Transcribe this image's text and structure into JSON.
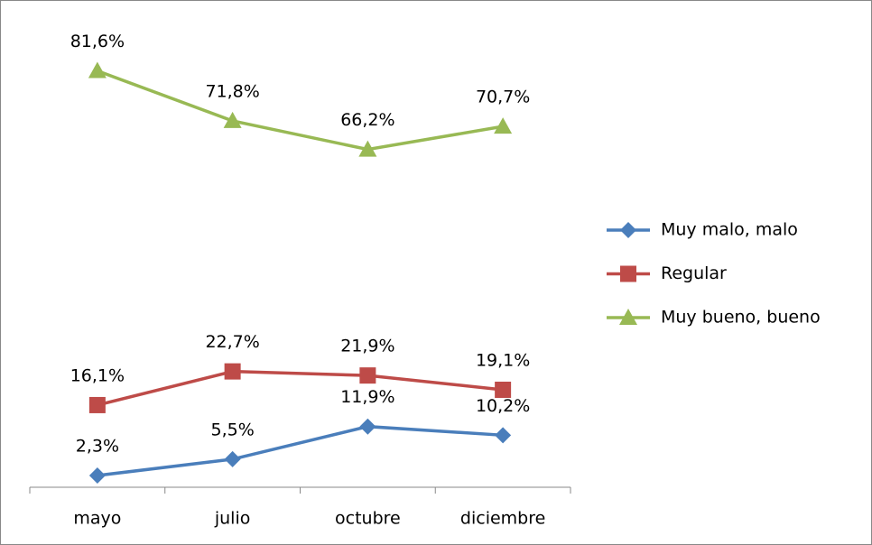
{
  "chart_data": {
    "type": "line",
    "categories": [
      "mayo",
      "julio",
      "octubre",
      "diciembre"
    ],
    "series": [
      {
        "name": "Muy malo, malo",
        "color": "#4a7ebb",
        "marker": "diamond",
        "values": [
          2.3,
          5.5,
          11.9,
          10.2
        ],
        "value_labels": [
          "2,3%",
          "5,5%",
          "11,9%",
          "10,2%"
        ]
      },
      {
        "name": "Regular",
        "color": "#be4b48",
        "marker": "square",
        "values": [
          16.1,
          22.7,
          21.9,
          19.1
        ],
        "value_labels": [
          "16,1%",
          "22,7%",
          "21,9%",
          "19,1%"
        ]
      },
      {
        "name": "Muy bueno, bueno",
        "color": "#98b954",
        "marker": "triangle",
        "values": [
          81.6,
          71.8,
          66.2,
          70.7
        ],
        "value_labels": [
          "81,6%",
          "71,8%",
          "66,2%",
          "70,7%"
        ]
      }
    ],
    "ylim": [
      0,
      90
    ],
    "legend": "right"
  }
}
